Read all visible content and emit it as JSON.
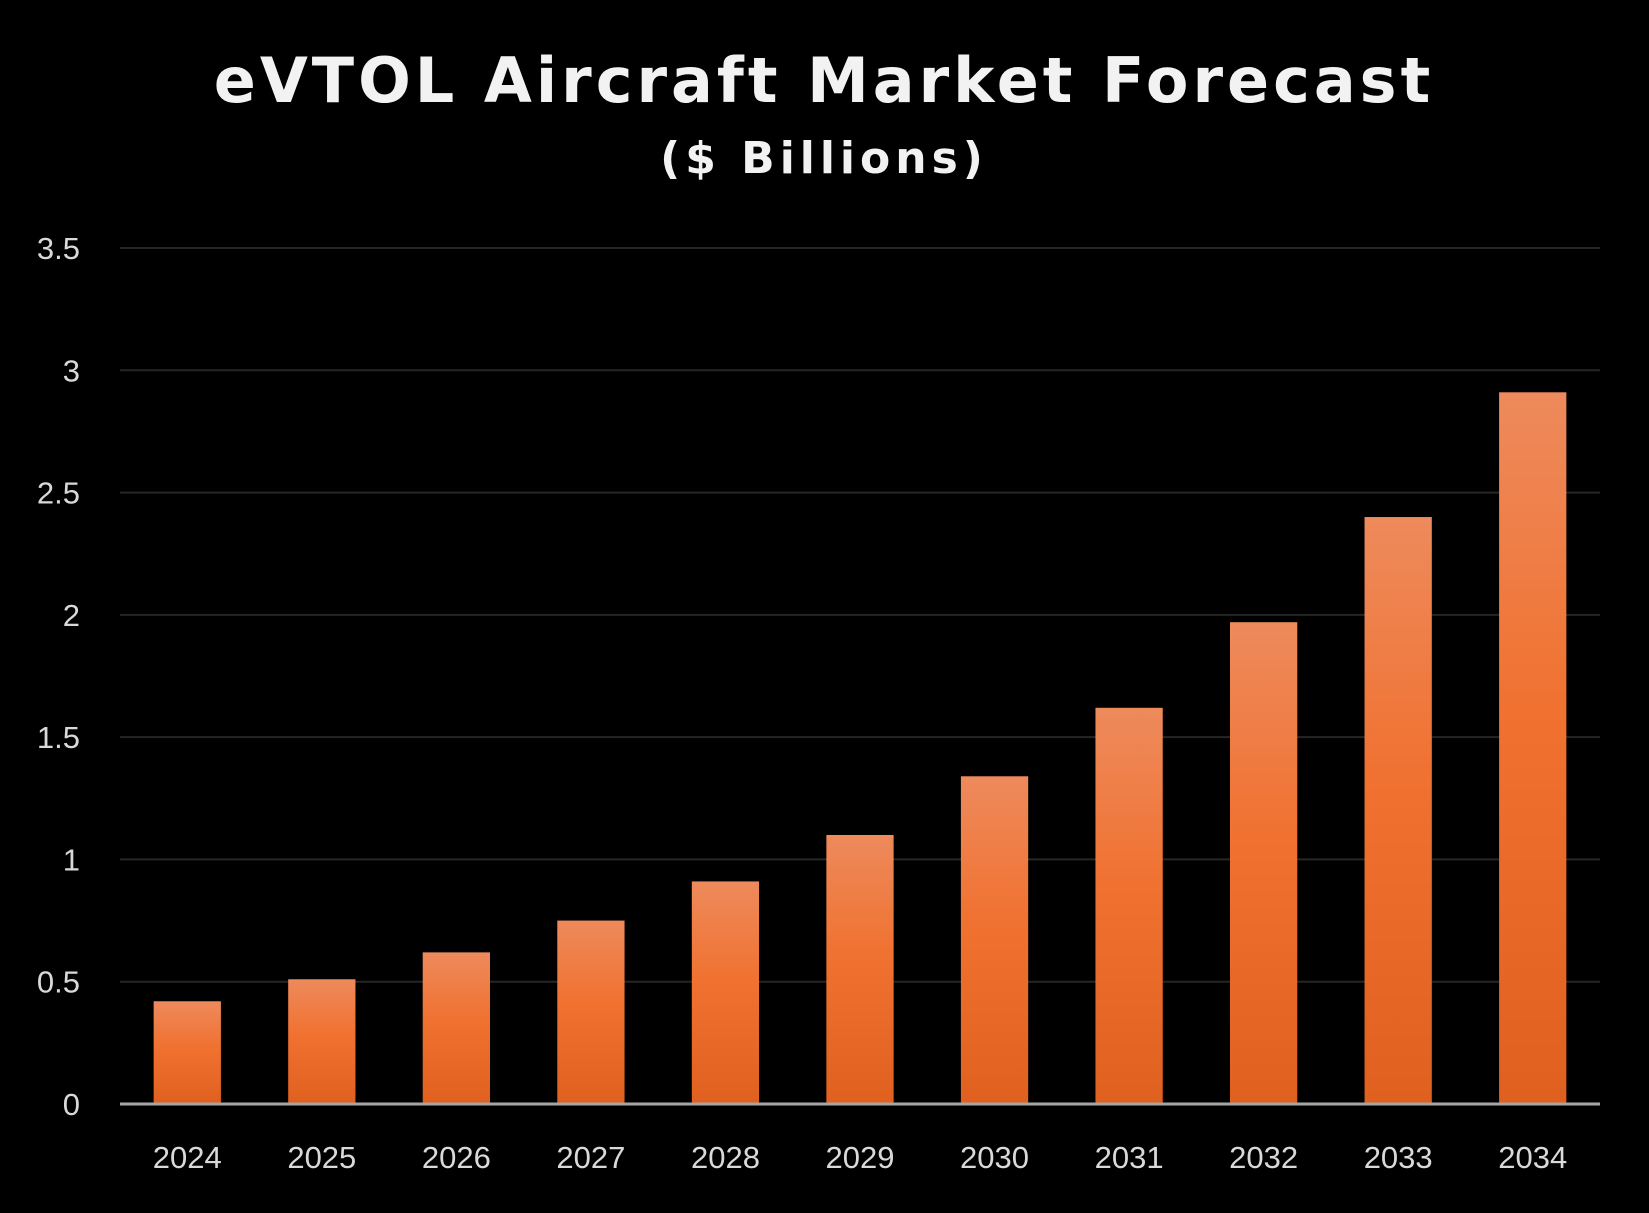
{
  "colors": {
    "background": "#000000",
    "bar_top": "#ee8a5c",
    "bar_mid": "#f07130",
    "bar_bottom": "#e0601f",
    "text": "#d9d9d9",
    "title": "#f2f2f2"
  },
  "chart_data": {
    "type": "bar",
    "title": "eVTOL Aircraft Market Forecast",
    "subtitle": "($ Billions)",
    "xlabel": "",
    "ylabel": "",
    "categories": [
      "2024",
      "2025",
      "2026",
      "2027",
      "2028",
      "2029",
      "2030",
      "2031",
      "2032",
      "2033",
      "2034"
    ],
    "values": [
      0.42,
      0.51,
      0.62,
      0.75,
      0.91,
      1.1,
      1.34,
      1.62,
      1.97,
      2.4,
      2.91
    ],
    "ylim": [
      0,
      3.5
    ],
    "yticks": [
      "0",
      "0.5",
      "1",
      "1.5",
      "2",
      "2.5",
      "3",
      "3.5"
    ],
    "grid": true,
    "legend": "none"
  }
}
